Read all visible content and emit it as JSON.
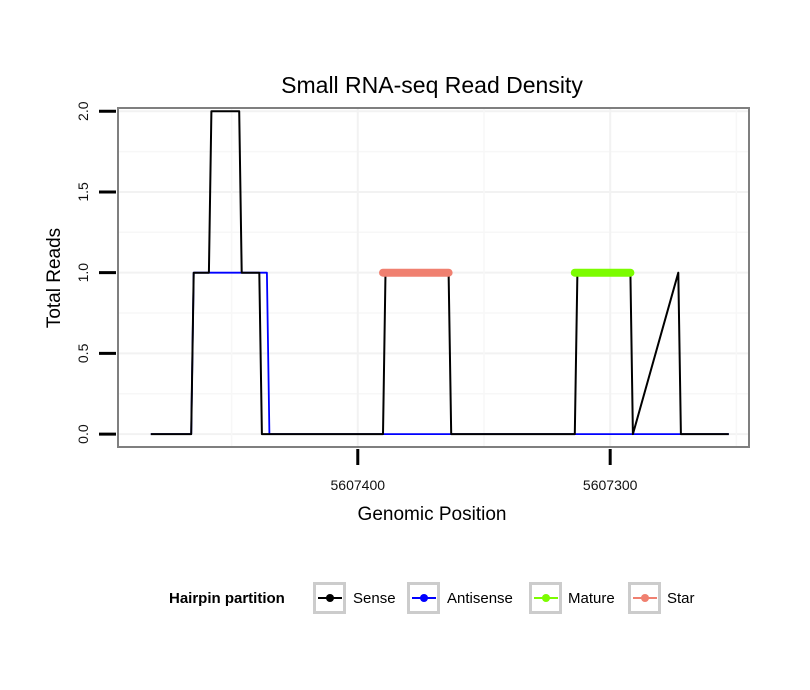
{
  "chart_data": {
    "type": "line",
    "title": "Small RNA-seq Read Density",
    "xlabel": "Genomic Position",
    "ylabel": "Total Reads",
    "x_reversed": true,
    "xlim": [
      5607495,
      5607245
    ],
    "ylim": [
      -0.08,
      2.02
    ],
    "x_ticks": [
      {
        "value": 5607400,
        "label": "5607400"
      },
      {
        "value": 5607300,
        "label": "5607300"
      }
    ],
    "y_ticks": [
      {
        "value": 0.0,
        "label": "0.0"
      },
      {
        "value": 0.5,
        "label": "0.5"
      },
      {
        "value": 1.0,
        "label": "1.0"
      },
      {
        "value": 1.5,
        "label": "1.5"
      },
      {
        "value": 2.0,
        "label": "2.0"
      }
    ],
    "series": [
      {
        "name": "Antisense",
        "color": "#0000ff",
        "x": [
          5607482,
          5607466,
          5607465,
          5607454,
          5607453,
          5607436,
          5607435,
          5607253
        ],
        "y": [
          0,
          0,
          1,
          1,
          1,
          1,
          0,
          0
        ]
      },
      {
        "name": "Sense",
        "color": "#000000",
        "x": [
          5607482,
          5607466,
          5607465,
          5607459,
          5607458,
          5607447,
          5607446,
          5607439,
          5607438,
          5607390,
          5607389,
          5607364,
          5607363,
          5607314,
          5607313,
          5607292,
          5607291,
          5607273,
          5607272,
          5607253
        ],
        "y": [
          0,
          0,
          1,
          1,
          2,
          2,
          1,
          1,
          0,
          0,
          1,
          1,
          0,
          0,
          1,
          1,
          0,
          1,
          0,
          0
        ]
      },
      {
        "name": "Star",
        "color": "#f08070",
        "x": [
          5607390,
          5607364
        ],
        "y": [
          1,
          1
        ]
      },
      {
        "name": "Mature",
        "color": "#7cfc00",
        "x": [
          5607314,
          5607292
        ],
        "y": [
          1,
          1
        ]
      }
    ],
    "legend": {
      "title": "Hairpin partition",
      "position": "bottom",
      "entries": [
        {
          "label": "Sense",
          "color": "#000000"
        },
        {
          "label": "Antisense",
          "color": "#0000ff"
        },
        {
          "label": "Mature",
          "color": "#7cfc00"
        },
        {
          "label": "Star",
          "color": "#f08070"
        }
      ]
    },
    "grid": true
  }
}
